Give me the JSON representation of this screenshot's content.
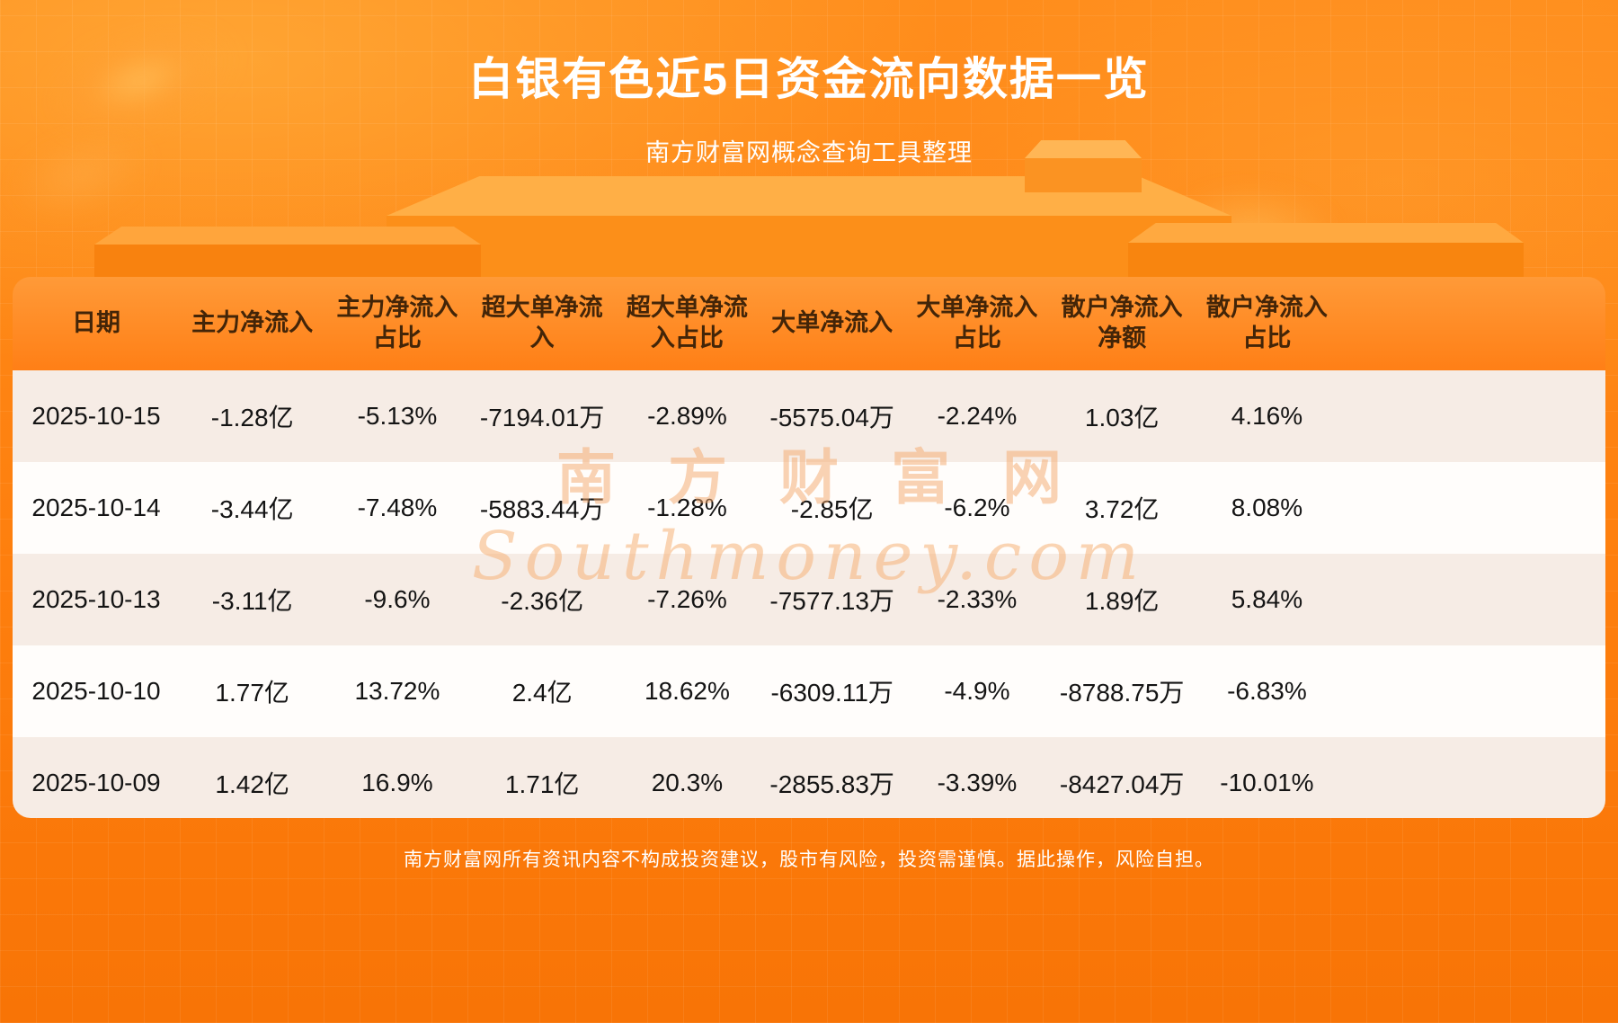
{
  "page": {
    "title": "白银有色近5日资金流向数据一览",
    "subtitle": "南方财富网概念查询工具整理",
    "footer": "南方财富网所有资讯内容不构成投资建议，股市有风险，投资需谨慎。据此操作，风险自担。",
    "watermark_cn": "南方财富网",
    "watermark_en": "Southmoney.com"
  },
  "colors": {
    "background_top": "#ff8d1c",
    "background_bottom": "#f87406",
    "header_background": "#ff8c26",
    "header_text": "#432508",
    "row_alt": "#f6ece5",
    "row_main": "#fffdfb",
    "title_text": "#ffffff"
  },
  "chart_data": {
    "type": "table",
    "title": "白银有色近5日资金流向数据一览",
    "source": "南方财富网概念查询工具整理",
    "columns": [
      "日期",
      "主力净流入",
      "主力净流入占比",
      "超大单净流入",
      "超大单净流入占比",
      "大单净流入",
      "大单净流入占比",
      "散户净流入净额",
      "散户净流入占比"
    ],
    "rows": [
      [
        "2025-10-15",
        "-1.28亿",
        "-5.13%",
        "-7194.01万",
        "-2.89%",
        "-5575.04万",
        "-2.24%",
        "1.03亿",
        "4.16%"
      ],
      [
        "2025-10-14",
        "-3.44亿",
        "-7.48%",
        "-5883.44万",
        "-1.28%",
        "-2.85亿",
        "-6.2%",
        "3.72亿",
        "8.08%"
      ],
      [
        "2025-10-13",
        "-3.11亿",
        "-9.6%",
        "-2.36亿",
        "-7.26%",
        "-7577.13万",
        "-2.33%",
        "1.89亿",
        "5.84%"
      ],
      [
        "2025-10-10",
        "1.77亿",
        "13.72%",
        "2.4亿",
        "18.62%",
        "-6309.11万",
        "-4.9%",
        "-8788.75万",
        "-6.83%"
      ],
      [
        "2025-10-09",
        "1.42亿",
        "16.9%",
        "1.71亿",
        "20.3%",
        "-2855.83万",
        "-3.39%",
        "-8427.04万",
        "-10.01%"
      ]
    ]
  }
}
